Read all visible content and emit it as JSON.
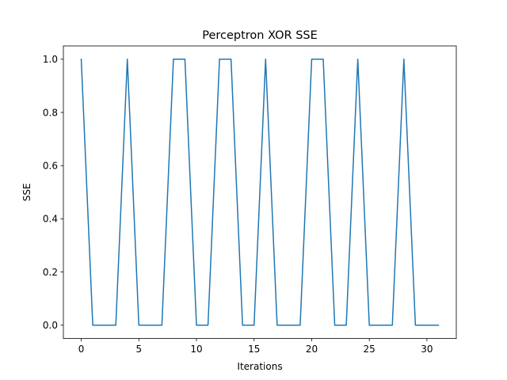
{
  "chart_data": {
    "type": "line",
    "title": "Perceptron XOR SSE",
    "xlabel": "Iterations",
    "ylabel": "SSE",
    "xlim": [
      -1.55,
      32.55
    ],
    "ylim": [
      -0.05,
      1.05
    ],
    "xticks": [
      0,
      5,
      10,
      15,
      20,
      25,
      30
    ],
    "xtick_labels": [
      "0",
      "5",
      "10",
      "15",
      "20",
      "25",
      "30"
    ],
    "yticks": [
      0.0,
      0.2,
      0.4,
      0.6,
      0.8,
      1.0
    ],
    "ytick_labels": [
      "0.0",
      "0.2",
      "0.4",
      "0.6",
      "0.8",
      "1.0"
    ],
    "grid": false,
    "line_color": "#1f77b4",
    "series": [
      {
        "x": [
          0,
          1,
          2,
          3,
          4,
          5,
          6,
          7,
          8,
          9,
          10,
          11,
          12,
          13,
          14,
          15,
          16,
          17,
          18,
          19,
          20,
          21,
          22,
          23,
          24,
          25,
          26,
          27,
          28,
          29,
          30,
          31
        ],
        "values": [
          1,
          0,
          0,
          0,
          1,
          0,
          0,
          0,
          1,
          1,
          0,
          0,
          1,
          1,
          0,
          0,
          1,
          0,
          0,
          0,
          1,
          1,
          0,
          0,
          1,
          0,
          0,
          0,
          1,
          0,
          0,
          0
        ]
      }
    ]
  }
}
